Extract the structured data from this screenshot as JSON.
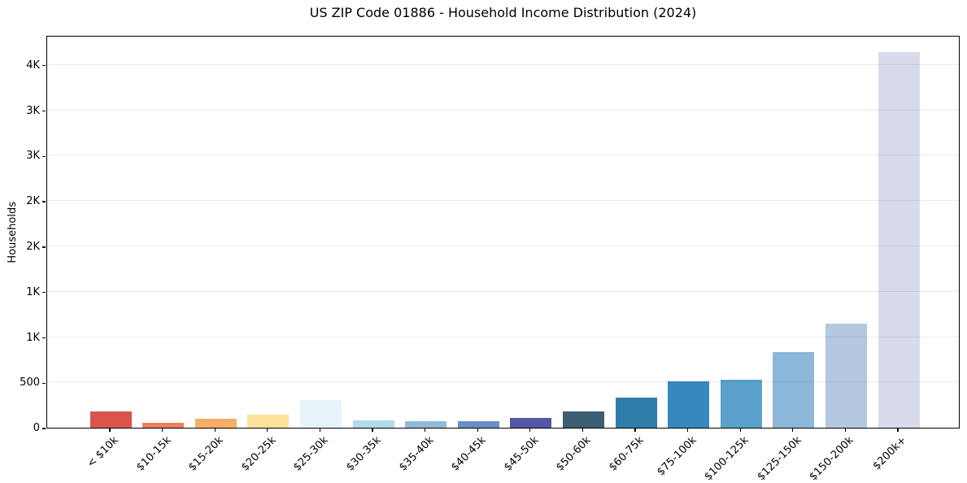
{
  "figure": {
    "background": "#ffffff"
  },
  "chart_data": {
    "type": "bar",
    "title": "US ZIP Code 01886 - Household Income Distribution (2024)",
    "xlabel": "",
    "ylabel": "Households",
    "categories": [
      "< $10k",
      "$10-15k",
      "$15-20k",
      "$20-25k",
      "$25-30k",
      "$30-35k",
      "$35-40k",
      "$40-45k",
      "$45-50k",
      "$50-60k",
      "$60-75k",
      "$75-100k",
      "$100-125k",
      "$125-150k",
      "$150-200k",
      "$200k+"
    ],
    "values": [
      178,
      52,
      96,
      143,
      305,
      82,
      72,
      68,
      105,
      177,
      332,
      511,
      529,
      838,
      1146,
      4141
    ],
    "bar_colors": [
      "#d9544d",
      "#ee7f5d",
      "#f7ad68",
      "#fde29a",
      "#e5f4f9",
      "#b2dcea",
      "#8fbbd9",
      "#6a90c5",
      "#5456a6",
      "#3a5e72",
      "#2f7da8",
      "#3689bf",
      "#5aa2cc",
      "#8db7d8",
      "#b4c8e0",
      "#d9daec"
    ],
    "ylim": [
      0,
      4330
    ],
    "ytick_values": [
      0,
      500,
      1000,
      1500,
      2000,
      2500,
      3000,
      3500,
      4000
    ],
    "ytick_labels": [
      "0",
      "500",
      "1K",
      "1K",
      "2K",
      "2K",
      "3K",
      "3K",
      "4K"
    ],
    "grid": "horizontal-light",
    "legend": "none"
  }
}
